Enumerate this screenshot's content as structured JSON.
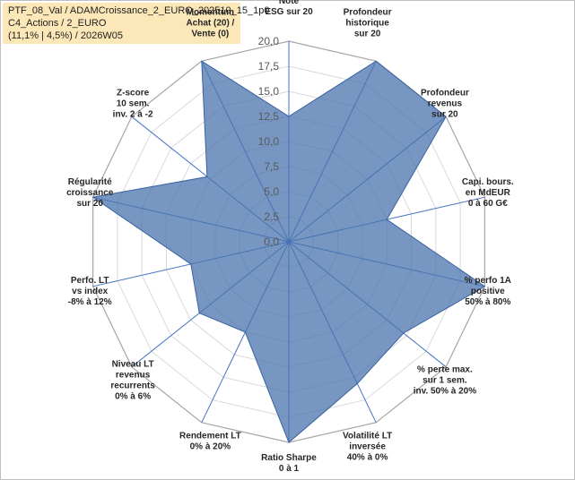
{
  "info": {
    "line1": "PTF_08_Val / ADAMCroissance_2_EURO_202510_15_1p0",
    "line2": "C4_Actions / 2_EURO",
    "line3": "(11,1% | 4,5%) / 2026W05"
  },
  "chart_data": {
    "type": "radar",
    "title": "",
    "r_min": 0,
    "r_max": 20,
    "r_step": 2.5,
    "tick_labels": [
      "0,0",
      "2,5",
      "5,0",
      "7,5",
      "10,0",
      "12,5",
      "15,0",
      "17,5",
      "20,0"
    ],
    "axes": [
      {
        "label": "Note\nESG sur 20",
        "value": 12.5
      },
      {
        "label": "Profondeur\nhistorique\nsur 20",
        "value": 20
      },
      {
        "label": "Profondeur\nrevenus\nsur 20",
        "value": 20
      },
      {
        "label": "Capi. bours.\nen MdEUR\n0 à 60 G€",
        "value": 10
      },
      {
        "label": "% perfo 1A\npositive\n50% à 80%",
        "value": 20
      },
      {
        "label": "% perte max.\nsur 1 sem.\ninv. 50% à 20%",
        "value": 14.6
      },
      {
        "label": "Volatilité LT\ninversée\n40% à 0%",
        "value": 15.7
      },
      {
        "label": "Ratio Sharpe\n0 à 1",
        "value": 20
      },
      {
        "label": "Rendement LT\n0% à 20%",
        "value": 10
      },
      {
        "label": "Niveau LT\nrevenus\nrecurrents\n0% à 6%",
        "value": 11.4
      },
      {
        "label": "Perfo. LT\nvs index\n-8% à 12%",
        "value": 10
      },
      {
        "label": "Régularité\ncroissance\nsur 20",
        "value": 20
      },
      {
        "label": "Z-score\n10 sem.\ninv. 2 à -2",
        "value": 10.4
      },
      {
        "label": "Momentum\nAchat (20) /\nVente (0)",
        "value": 20
      }
    ],
    "series": [
      {
        "name": "ADAMCroissance_2_EURO",
        "color": "#4a74ad"
      }
    ]
  }
}
